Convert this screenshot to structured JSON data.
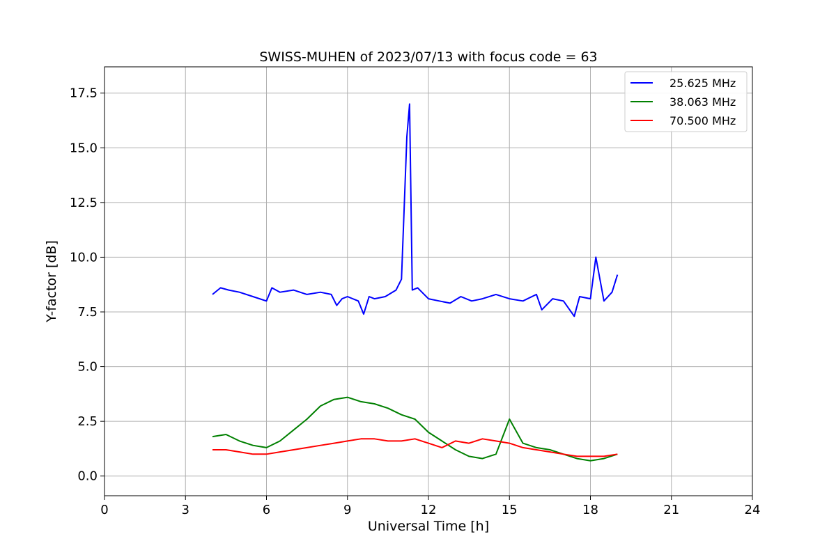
{
  "chart_data": {
    "type": "line",
    "title": "SWISS-MUHEN of 2023/07/13 with focus code = 63",
    "xlabel": "Universal Time [h]",
    "ylabel": "Y-factor [dB]",
    "xlim": [
      0,
      24
    ],
    "ylim": [
      -0.9,
      18.7
    ],
    "xticks": [
      0,
      3,
      6,
      9,
      12,
      15,
      18,
      21,
      24
    ],
    "xtick_labels": [
      "0",
      "3",
      "6",
      "9",
      "12",
      "15",
      "18",
      "21",
      "24"
    ],
    "yticks": [
      0.0,
      2.5,
      5.0,
      7.5,
      10.0,
      12.5,
      15.0,
      17.5
    ],
    "ytick_labels": [
      "0.0",
      "2.5",
      "5.0",
      "7.5",
      "10.0",
      "12.5",
      "15.0",
      "17.5"
    ],
    "grid": true,
    "legend_position": "top-right",
    "series": [
      {
        "name": "25.625 MHz",
        "color": "#0000ff",
        "x": [
          4.0,
          4.3,
          4.6,
          5.0,
          5.5,
          6.0,
          6.2,
          6.5,
          7.0,
          7.5,
          8.0,
          8.4,
          8.6,
          8.8,
          9.0,
          9.4,
          9.6,
          9.8,
          10.0,
          10.4,
          10.8,
          11.0,
          11.2,
          11.3,
          11.4,
          11.6,
          12.0,
          12.4,
          12.8,
          13.2,
          13.6,
          14.0,
          14.5,
          15.0,
          15.5,
          16.0,
          16.2,
          16.6,
          17.0,
          17.4,
          17.6,
          18.0,
          18.2,
          18.5,
          18.8,
          19.0
        ],
        "values": [
          8.3,
          8.6,
          8.5,
          8.4,
          8.2,
          8.0,
          8.6,
          8.4,
          8.5,
          8.3,
          8.4,
          8.3,
          7.8,
          8.1,
          8.2,
          8.0,
          7.4,
          8.2,
          8.1,
          8.2,
          8.5,
          9.0,
          15.5,
          17.0,
          8.5,
          8.6,
          8.1,
          8.0,
          7.9,
          8.2,
          8.0,
          8.1,
          8.3,
          8.1,
          8.0,
          8.3,
          7.6,
          8.1,
          8.0,
          7.3,
          8.2,
          8.1,
          10.0,
          8.0,
          8.4,
          9.2
        ]
      },
      {
        "name": "38.063 MHz",
        "color": "#008000",
        "x": [
          4.0,
          4.5,
          5.0,
          5.5,
          6.0,
          6.5,
          7.0,
          7.5,
          8.0,
          8.5,
          9.0,
          9.5,
          10.0,
          10.5,
          11.0,
          11.5,
          12.0,
          12.5,
          13.0,
          13.5,
          14.0,
          14.5,
          15.0,
          15.5,
          16.0,
          16.5,
          17.0,
          17.5,
          18.0,
          18.5,
          19.0
        ],
        "values": [
          1.8,
          1.9,
          1.6,
          1.4,
          1.3,
          1.6,
          2.1,
          2.6,
          3.2,
          3.5,
          3.6,
          3.4,
          3.3,
          3.1,
          2.8,
          2.6,
          2.0,
          1.6,
          1.2,
          0.9,
          0.8,
          1.0,
          2.6,
          1.5,
          1.3,
          1.2,
          1.0,
          0.8,
          0.7,
          0.8,
          1.0
        ]
      },
      {
        "name": "70.500 MHz",
        "color": "#ff0000",
        "x": [
          4.0,
          4.5,
          5.0,
          5.5,
          6.0,
          6.5,
          7.0,
          7.5,
          8.0,
          8.5,
          9.0,
          9.5,
          10.0,
          10.5,
          11.0,
          11.5,
          12.0,
          12.5,
          13.0,
          13.5,
          14.0,
          14.5,
          15.0,
          15.5,
          16.0,
          16.5,
          17.0,
          17.5,
          18.0,
          18.5,
          19.0
        ],
        "values": [
          1.2,
          1.2,
          1.1,
          1.0,
          1.0,
          1.1,
          1.2,
          1.3,
          1.4,
          1.5,
          1.6,
          1.7,
          1.7,
          1.6,
          1.6,
          1.7,
          1.5,
          1.3,
          1.6,
          1.5,
          1.7,
          1.6,
          1.5,
          1.3,
          1.2,
          1.1,
          1.0,
          0.9,
          0.9,
          0.9,
          1.0
        ]
      }
    ]
  }
}
